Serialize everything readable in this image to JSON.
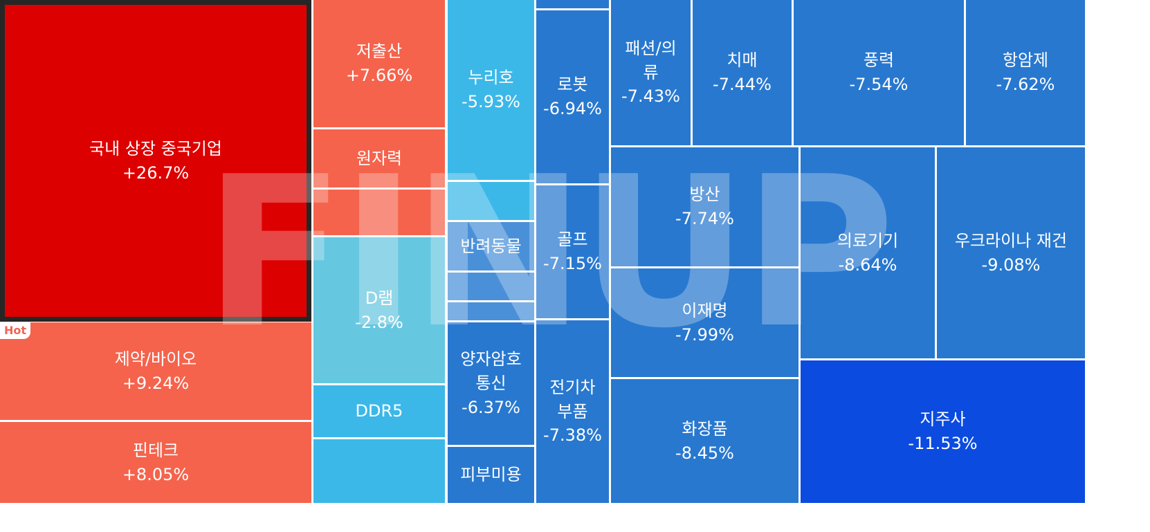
{
  "colors": {
    "red_strong": "#dd0000",
    "red": "#f5634c",
    "cyan": "#3bb8e8",
    "cyan_light": "#66c7e0",
    "blue": "#2878cf",
    "blue_mid": "#4a90d9",
    "blue_deep": "#0b4be0"
  },
  "badge": {
    "hot": "Hot"
  },
  "watermark": {
    "text": "FINUP"
  },
  "chart_data": {
    "type": "treemap",
    "unit": "%",
    "tiles": [
      {
        "name": "국내 상장 중국기업",
        "value": "+26.7%",
        "change": 26.7,
        "color": "#dd0000",
        "selected": true
      },
      {
        "name": "제약/바이오",
        "value": "+9.24%",
        "change": 9.24,
        "color": "#f5634c"
      },
      {
        "name": "핀테크",
        "value": "+8.05%",
        "change": 8.05,
        "color": "#f5634c"
      },
      {
        "name": "저출산",
        "value": "+7.66%",
        "change": 7.66,
        "color": "#f5634c"
      },
      {
        "name": "원자력",
        "value": "",
        "color": "#f5634c"
      },
      {
        "name": "",
        "value": "",
        "color": "#f5634c"
      },
      {
        "name": "D램",
        "value": "-2.8%",
        "change": -2.8,
        "color": "#66c7e0"
      },
      {
        "name": "DDR5",
        "value": "",
        "color": "#3bb8e8"
      },
      {
        "name": "",
        "value": "",
        "color": "#3bb8e8"
      },
      {
        "name": "누리호",
        "value": "-5.93%",
        "change": -5.93,
        "color": "#3bb8e8"
      },
      {
        "name": "",
        "value": "",
        "color": "#3bb8e8"
      },
      {
        "name": "반려동물",
        "value": "",
        "color": "#4a90d9"
      },
      {
        "name": "",
        "value": "",
        "color": "#4a90d9"
      },
      {
        "name": "",
        "value": "",
        "color": "#4a90d9"
      },
      {
        "name": "양자암호\n통신",
        "value": "-6.37%",
        "change": -6.37,
        "color": "#2878cf"
      },
      {
        "name": "피부미용",
        "value": "",
        "color": "#2878cf"
      },
      {
        "name": "",
        "value": "",
        "color": "#2878cf"
      },
      {
        "name": "로봇",
        "value": "-6.94%",
        "change": -6.94,
        "color": "#2878cf"
      },
      {
        "name": "골프",
        "value": "-7.15%",
        "change": -7.15,
        "color": "#2878cf"
      },
      {
        "name": "전기차\n부품",
        "value": "-7.38%",
        "change": -7.38,
        "color": "#2878cf"
      },
      {
        "name": "패션/의\n류",
        "value": "-7.43%",
        "change": -7.43,
        "color": "#2878cf"
      },
      {
        "name": "치매",
        "value": "-7.44%",
        "change": -7.44,
        "color": "#2878cf"
      },
      {
        "name": "풍력",
        "value": "-7.54%",
        "change": -7.54,
        "color": "#2878cf"
      },
      {
        "name": "항암제",
        "value": "-7.62%",
        "change": -7.62,
        "color": "#2878cf"
      },
      {
        "name": "방산",
        "value": "-7.74%",
        "change": -7.74,
        "color": "#2878cf"
      },
      {
        "name": "이재명",
        "value": "-7.99%",
        "change": -7.99,
        "color": "#2878cf"
      },
      {
        "name": "화장품",
        "value": "-8.45%",
        "change": -8.45,
        "color": "#2878cf"
      },
      {
        "name": "의료기기",
        "value": "-8.64%",
        "change": -8.64,
        "color": "#2878cf"
      },
      {
        "name": "우크라이나 재건",
        "value": "-9.08%",
        "change": -9.08,
        "color": "#2878cf"
      },
      {
        "name": "지주사",
        "value": "-11.53%",
        "change": -11.53,
        "color": "#0b4be0"
      }
    ]
  }
}
